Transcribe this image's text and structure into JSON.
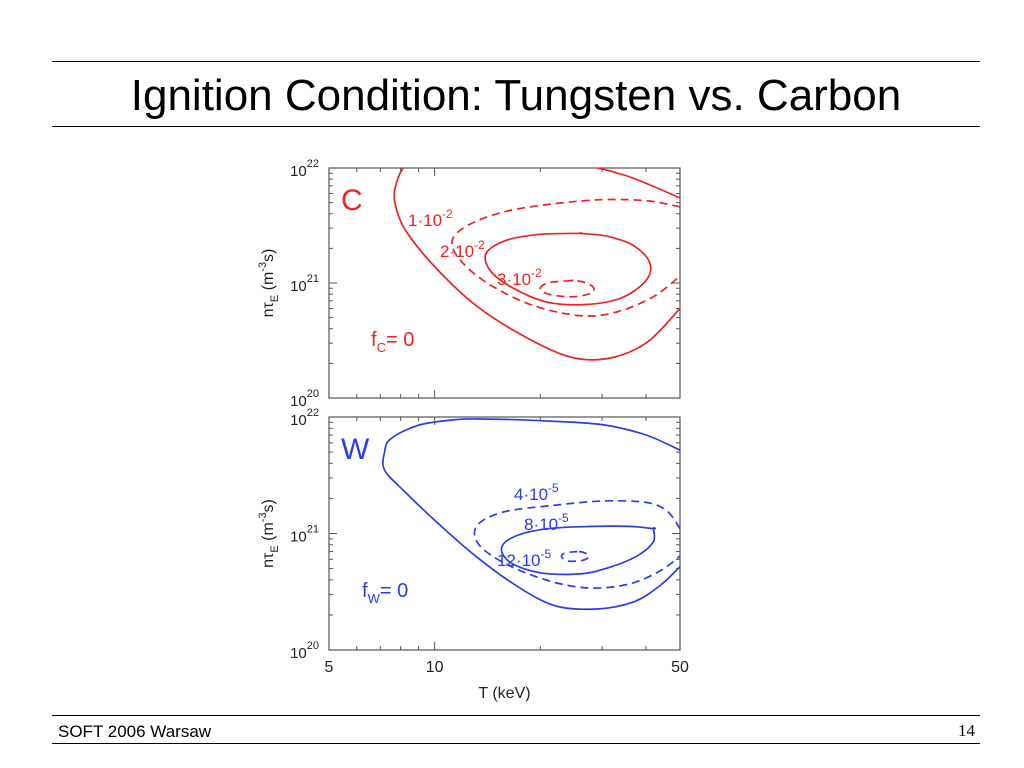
{
  "slide": {
    "title": "Ignition Condition: Tungsten vs. Carbon",
    "footer_left": "SOFT 2006 Warsaw",
    "page_number": "14"
  },
  "chart_data": [
    {
      "type": "contour",
      "panel_label": "C",
      "color": "#ee2222",
      "xscale": "log",
      "xlim": [
        5,
        50
      ],
      "yscale": "log",
      "ylim": [
        1e+20,
        1e+22
      ],
      "y_ticks": [
        {
          "base": "10",
          "exp": "20"
        },
        {
          "base": "10",
          "exp": "21"
        },
        {
          "base": "10",
          "exp": "22"
        }
      ],
      "ylabel": {
        "main": "nτ",
        "sub": "E",
        "rest": " (m",
        "sup": "-3",
        "end": "s)"
      },
      "contours": [
        {
          "label_main": "f",
          "label_sub": "C",
          "label_rest": "= 0",
          "style": "solid",
          "points": [
            [
              50,
              5.5e+21
            ],
            [
              35,
              8.6e+21
            ],
            [
              25,
              1.1e+22
            ],
            [
              16,
              1.37e+22
            ],
            [
              11,
              1.4e+22
            ],
            [
              8.5,
              1.15e+22
            ],
            [
              7.7,
              6.5e+21
            ],
            [
              7.9,
              3.8e+21
            ],
            [
              8.6,
              2.4e+21
            ],
            [
              10.2,
              1.3e+21
            ],
            [
              13,
              6.5e+20
            ],
            [
              17.5,
              3.6e+20
            ],
            [
              24,
              2.3e+20
            ],
            [
              31,
              2.2e+20
            ],
            [
              40,
              3e+20
            ],
            [
              50,
              6e+20
            ]
          ]
        },
        {
          "label_main": "1·10",
          "label_sup": "-2",
          "style": "dashed",
          "points": [
            [
              50,
              4.5e+21
            ],
            [
              35,
              5.8e+21
            ],
            [
              25,
              5.3e+21
            ],
            [
              16,
              4.5e+21
            ],
            [
              11.5,
              3.6e+21
            ],
            [
              10,
              2.5e+21
            ],
            [
              10.5,
              1.5e+21
            ],
            [
              12.5,
              8.5e+20
            ],
            [
              16,
              5.3e+20
            ],
            [
              22,
              4e+20
            ],
            [
              30,
              4.1e+20
            ],
            [
              40,
              5.3e+20
            ],
            [
              46,
              9e+20
            ],
            [
              45,
              1.6e+21
            ],
            [
              40,
              2.5e+21
            ],
            [
              30,
              3.2e+21
            ],
            [
              22,
              3.4e+21
            ],
            [
              17,
              3.2e+21
            ],
            [
              14,
              2.7e+21
            ],
            [
              13.2,
              2e+21
            ],
            [
              14,
              1.35e+21
            ],
            [
              16,
              9e+20
            ],
            [
              19,
              6.6e+20
            ],
            [
              24,
              6.2e+20
            ],
            [
              32,
              7.3e+20
            ],
            [
              38,
              1e+21
            ],
            [
              39,
              1.4e+21
            ],
            [
              35,
              2e+21
            ],
            [
              28,
              2.4e+21
            ],
            [
              20,
              2.5e+21
            ]
          ]
        },
        {
          "label_main": "3·10",
          "label_sup": "-2",
          "style": "dashed",
          "points": [
            [
              24,
              1.05e+21
            ],
            [
              21,
              1e+21
            ],
            [
              19.5,
              8.8e+20
            ],
            [
              20.5,
              7.6e+20
            ],
            [
              24,
              7.2e+20
            ],
            [
              27,
              7.6e+20
            ],
            [
              28,
              8.8e+20
            ],
            [
              26.5,
              1e+21
            ],
            [
              24,
              1.05e+21
            ]
          ]
        }
      ],
      "labels_on_plot": [
        {
          "main": "1·10",
          "sup": "-2"
        },
        {
          "main": "2·10",
          "sup": "-2"
        },
        {
          "main": "3·10",
          "sup": "-2"
        },
        {
          "main": "f",
          "sub": "C",
          "rest": "= 0"
        }
      ]
    },
    {
      "type": "contour",
      "panel_label": "W",
      "color": "#2a3ee6",
      "xscale": "log",
      "xlim": [
        5,
        50
      ],
      "xlabel": "T (keV)",
      "x_ticks": [
        "5",
        "10",
        "50"
      ],
      "yscale": "log",
      "ylim": [
        1e+20,
        1e+22
      ],
      "y_ticks": [
        {
          "base": "10",
          "exp": "20"
        },
        {
          "base": "10",
          "exp": "21"
        },
        {
          "base": "10",
          "exp": "22"
        }
      ],
      "ylabel": {
        "main": "nτ",
        "sub": "E",
        "rest": " (m",
        "sup": "-3",
        "end": "s)"
      },
      "labels_on_plot": [
        {
          "main": "4·10",
          "sup": "-5"
        },
        {
          "main": "8·10",
          "sup": "-5"
        },
        {
          "main": "12·10",
          "sup": "-5"
        },
        {
          "main": "f",
          "sub": "W",
          "rest": "= 0"
        }
      ]
    }
  ]
}
